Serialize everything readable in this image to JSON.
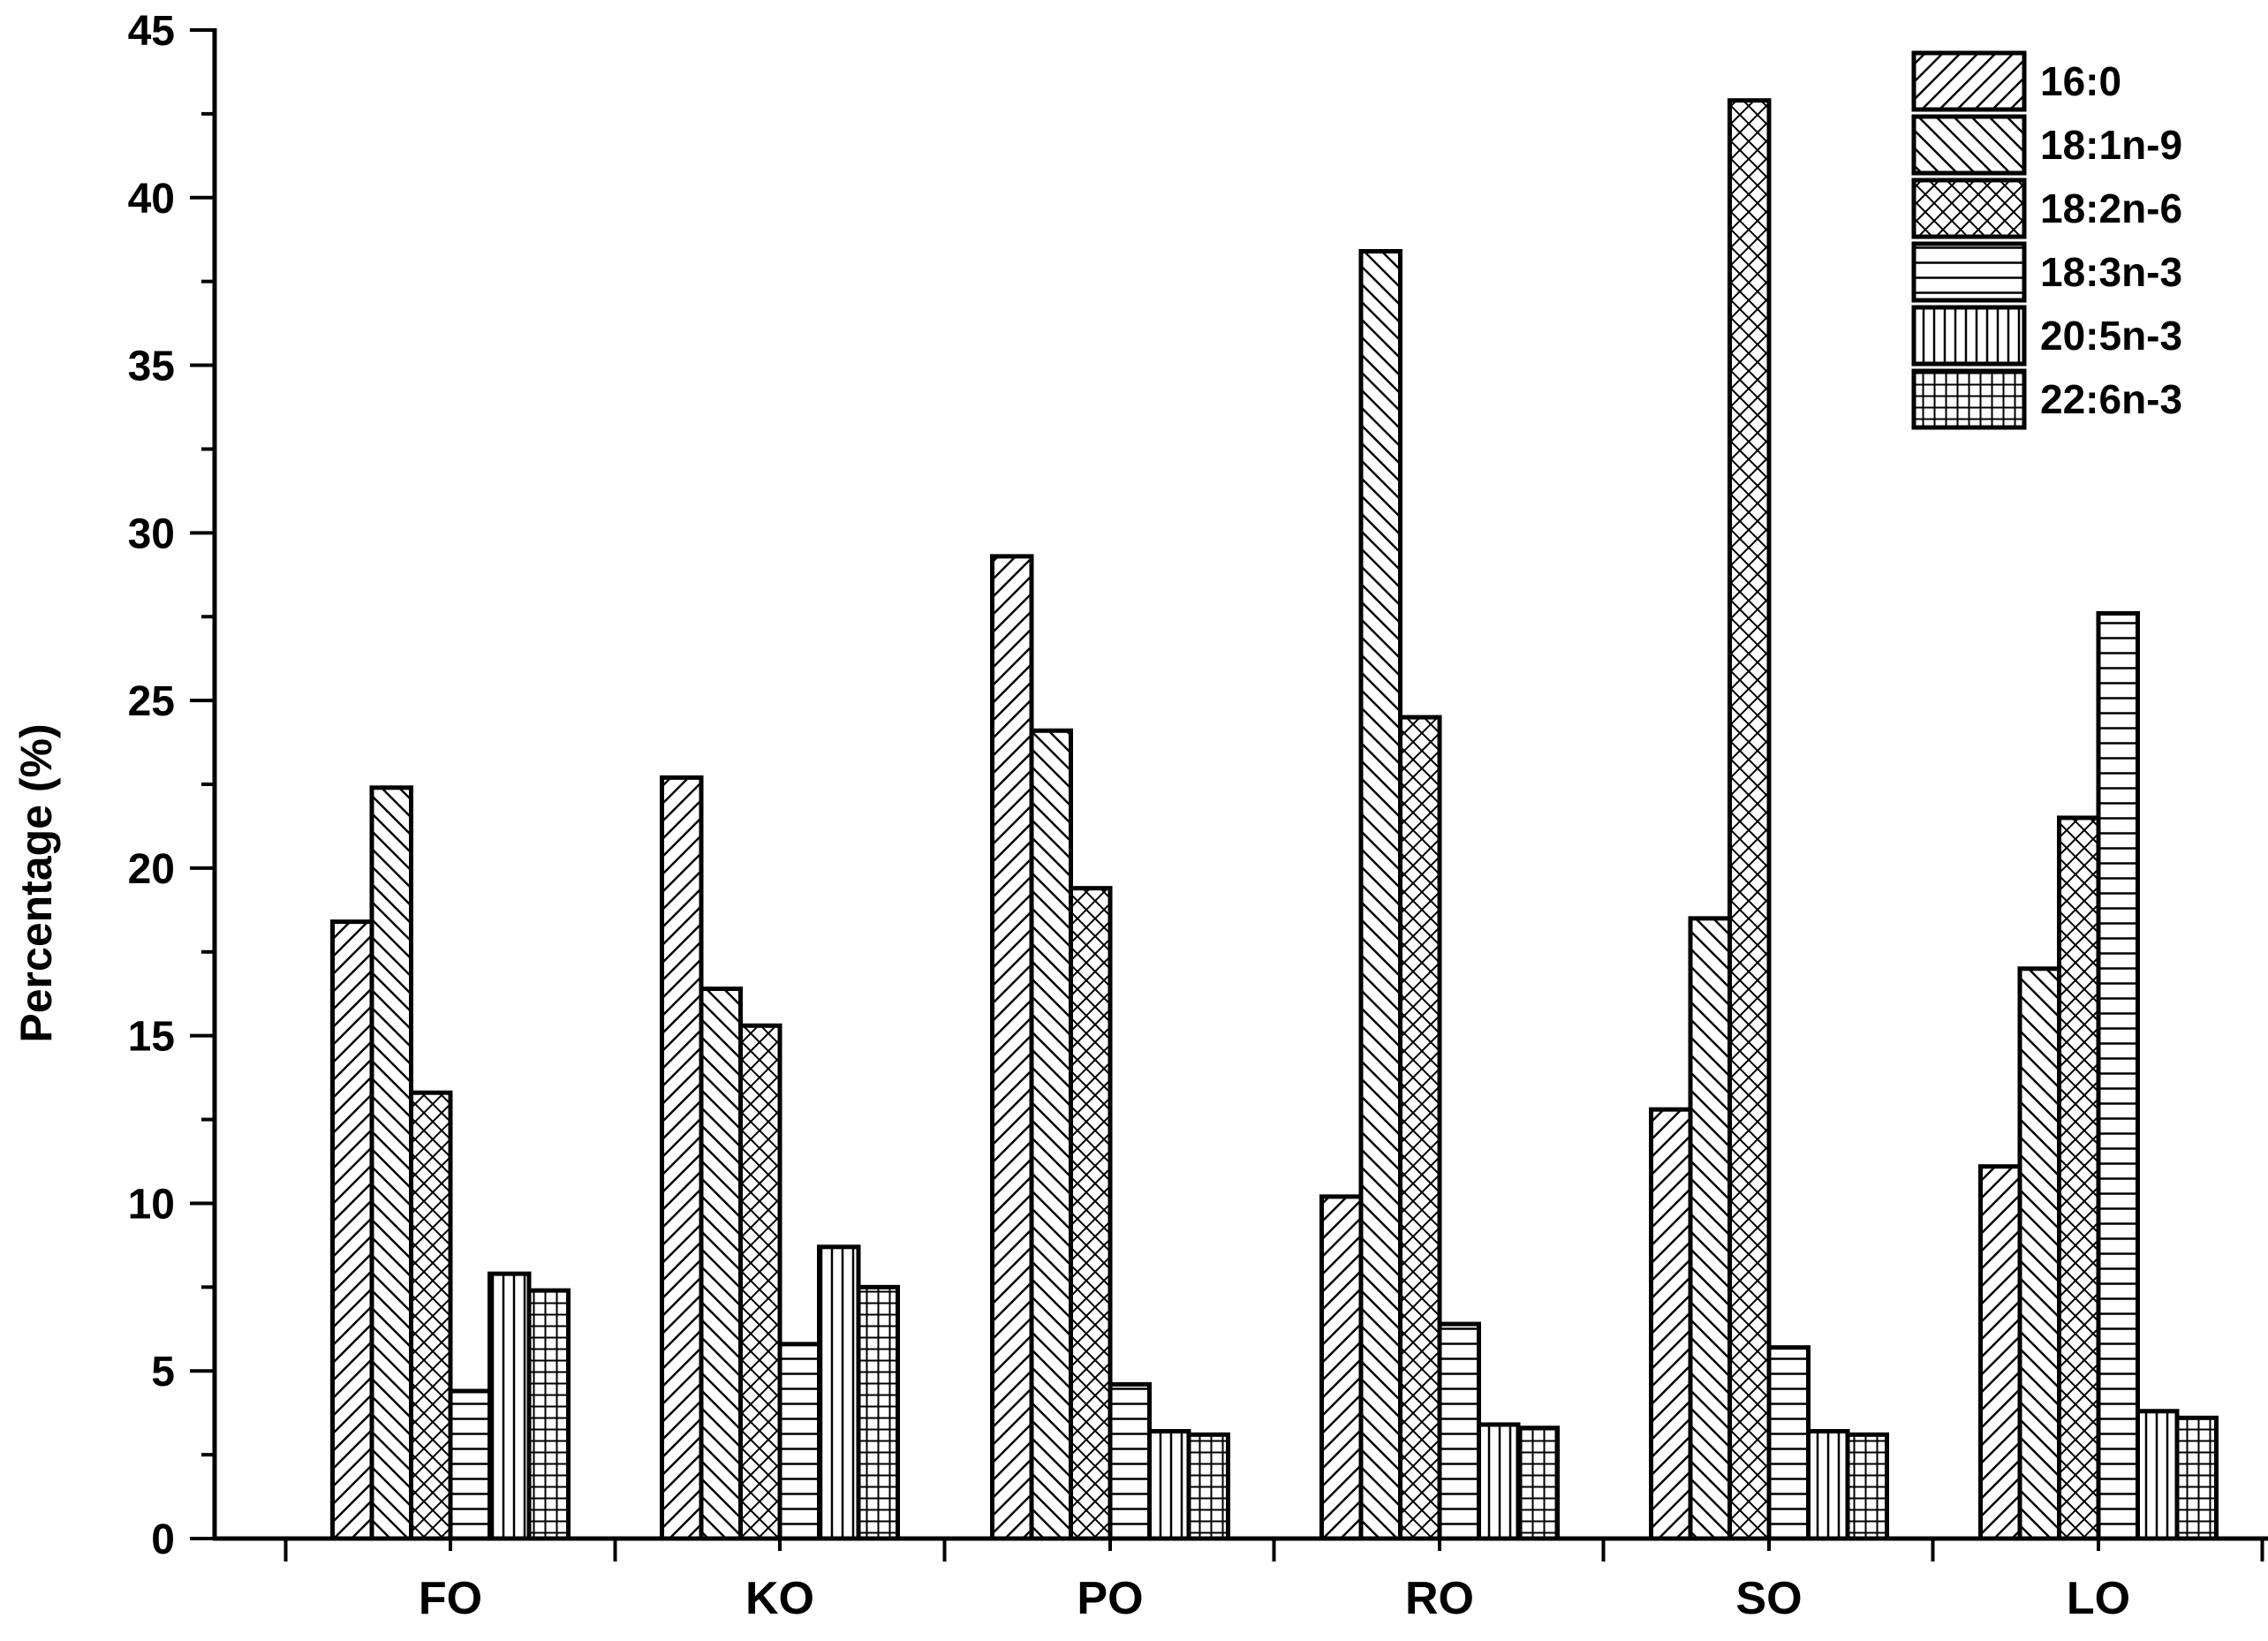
{
  "chart_data": {
    "type": "bar",
    "title": "",
    "xlabel": "",
    "ylabel": "Percentage (%)",
    "ylim": [
      0,
      45
    ],
    "yticks": [
      0,
      5,
      10,
      15,
      20,
      25,
      30,
      35,
      40,
      45
    ],
    "ytick_labels": [
      "0",
      "5",
      "10",
      "15",
      "20",
      "25",
      "30",
      "35",
      "40",
      "45"
    ],
    "grid": false,
    "legend_position": "top-right",
    "categories": [
      "FO",
      "KO",
      "PO",
      "RO",
      "SO",
      "LO"
    ],
    "series": [
      {
        "name": "16:0",
        "pattern": "diag-right",
        "values": [
          18.4,
          22.7,
          29.3,
          10.2,
          12.8,
          11.1
        ]
      },
      {
        "name": "18:1n-9",
        "pattern": "diag-left",
        "values": [
          22.4,
          16.4,
          24.1,
          38.4,
          18.5,
          17.0
        ]
      },
      {
        "name": "18:2n-6",
        "pattern": "crosshatch",
        "values": [
          13.3,
          15.3,
          19.4,
          24.5,
          42.9,
          21.5
        ]
      },
      {
        "name": "18:3n-3",
        "pattern": "horizontal",
        "values": [
          4.4,
          5.8,
          4.6,
          6.4,
          5.7,
          27.6
        ]
      },
      {
        "name": "20:5n-3",
        "pattern": "vertical",
        "values": [
          7.9,
          8.7,
          3.2,
          3.4,
          3.2,
          3.8
        ]
      },
      {
        "name": "22:6n-3",
        "pattern": "grid",
        "values": [
          7.4,
          7.5,
          3.1,
          3.3,
          3.1,
          3.6
        ]
      }
    ],
    "colors": {
      "stroke": "#000000",
      "fill": "#ffffff"
    }
  }
}
